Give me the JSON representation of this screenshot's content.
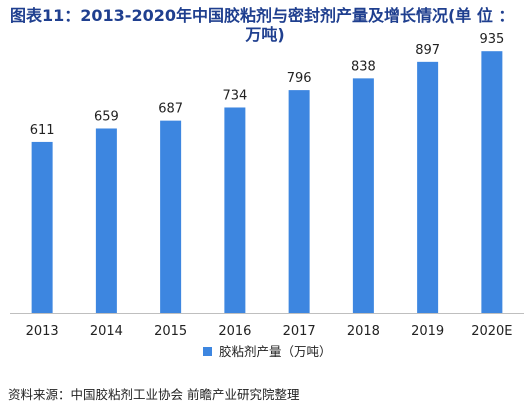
{
  "title": {
    "line1": "图表11：2013-2020年中国胶粘剂与密封剂产量及增长情况(单 位 ：",
    "line2": "万吨)"
  },
  "chart_data": {
    "type": "bar",
    "categories": [
      "2013",
      "2014",
      "2015",
      "2016",
      "2017",
      "2018",
      "2019",
      "2020E"
    ],
    "series": [
      {
        "name": "胶粘剂产量（万吨）",
        "values": [
          611,
          659,
          687,
          734,
          796,
          838,
          897,
          935
        ]
      }
    ],
    "ylim": [
      0,
      1000
    ],
    "grid": false,
    "legend": "bottom-center",
    "color": "#3d86e0"
  },
  "source": "资料来源：中国胶粘剂工业协会 前瞻产业研究院整理"
}
